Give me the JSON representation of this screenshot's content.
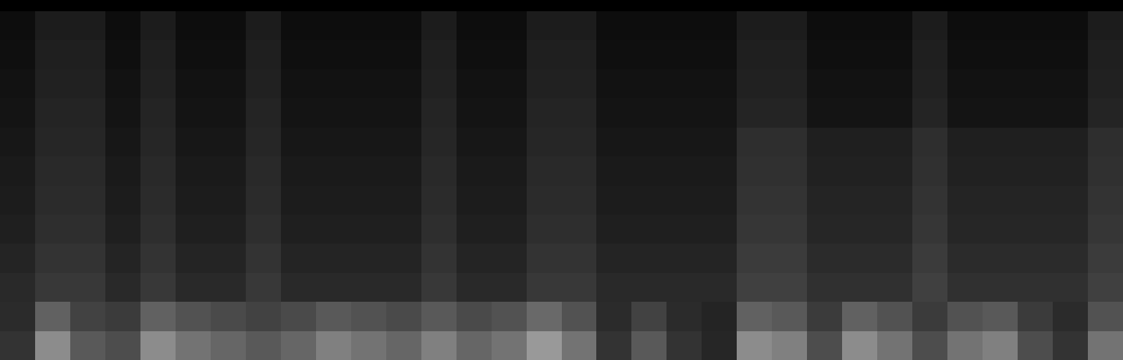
{
  "chart_data": {
    "type": "heatmap",
    "tick_labels": false,
    "zlim": [
      0,
      1
    ],
    "cells": [
      [
        0.05,
        0.11,
        0.11,
        0.05,
        0.11,
        0.05,
        0.05,
        0.11,
        0.05,
        0.05,
        0.05,
        0.05,
        0.11,
        0.05,
        0.05,
        0.11,
        0.11,
        0.05,
        0.05,
        0.05,
        0.05,
        0.11,
        0.11,
        0.05,
        0.05,
        0.05,
        0.11,
        0.05,
        0.05,
        0.05,
        0.05,
        0.11
      ],
      [
        0.06,
        0.12,
        0.12,
        0.06,
        0.12,
        0.06,
        0.06,
        0.12,
        0.06,
        0.06,
        0.06,
        0.06,
        0.12,
        0.06,
        0.06,
        0.12,
        0.12,
        0.06,
        0.06,
        0.06,
        0.06,
        0.12,
        0.12,
        0.06,
        0.06,
        0.06,
        0.12,
        0.06,
        0.06,
        0.06,
        0.06,
        0.12
      ],
      [
        0.07,
        0.13,
        0.13,
        0.07,
        0.13,
        0.07,
        0.07,
        0.13,
        0.07,
        0.07,
        0.07,
        0.07,
        0.13,
        0.07,
        0.07,
        0.13,
        0.13,
        0.07,
        0.07,
        0.07,
        0.07,
        0.13,
        0.13,
        0.07,
        0.07,
        0.07,
        0.13,
        0.07,
        0.07,
        0.07,
        0.07,
        0.13
      ],
      [
        0.08,
        0.14,
        0.14,
        0.08,
        0.14,
        0.08,
        0.08,
        0.14,
        0.08,
        0.08,
        0.08,
        0.08,
        0.14,
        0.08,
        0.08,
        0.14,
        0.14,
        0.08,
        0.08,
        0.08,
        0.08,
        0.14,
        0.14,
        0.08,
        0.08,
        0.08,
        0.14,
        0.08,
        0.08,
        0.08,
        0.08,
        0.14
      ],
      [
        0.09,
        0.15,
        0.15,
        0.09,
        0.15,
        0.09,
        0.09,
        0.15,
        0.09,
        0.09,
        0.09,
        0.09,
        0.15,
        0.09,
        0.09,
        0.15,
        0.15,
        0.09,
        0.09,
        0.09,
        0.09,
        0.18,
        0.18,
        0.12,
        0.12,
        0.12,
        0.18,
        0.12,
        0.12,
        0.12,
        0.12,
        0.18
      ],
      [
        0.1,
        0.16,
        0.16,
        0.1,
        0.16,
        0.1,
        0.1,
        0.16,
        0.1,
        0.1,
        0.1,
        0.1,
        0.16,
        0.1,
        0.1,
        0.16,
        0.16,
        0.1,
        0.1,
        0.1,
        0.1,
        0.19,
        0.19,
        0.13,
        0.13,
        0.13,
        0.19,
        0.13,
        0.13,
        0.13,
        0.13,
        0.19
      ],
      [
        0.11,
        0.17,
        0.17,
        0.11,
        0.17,
        0.11,
        0.11,
        0.17,
        0.11,
        0.11,
        0.11,
        0.11,
        0.17,
        0.11,
        0.11,
        0.17,
        0.17,
        0.11,
        0.11,
        0.11,
        0.11,
        0.2,
        0.2,
        0.14,
        0.14,
        0.14,
        0.2,
        0.14,
        0.14,
        0.14,
        0.14,
        0.2
      ],
      [
        0.12,
        0.18,
        0.18,
        0.12,
        0.18,
        0.12,
        0.12,
        0.18,
        0.12,
        0.12,
        0.12,
        0.12,
        0.18,
        0.12,
        0.12,
        0.18,
        0.18,
        0.12,
        0.12,
        0.12,
        0.12,
        0.21,
        0.21,
        0.15,
        0.15,
        0.15,
        0.21,
        0.15,
        0.15,
        0.15,
        0.15,
        0.21
      ],
      [
        0.14,
        0.2,
        0.2,
        0.14,
        0.2,
        0.14,
        0.14,
        0.2,
        0.14,
        0.14,
        0.14,
        0.14,
        0.2,
        0.14,
        0.14,
        0.2,
        0.2,
        0.14,
        0.14,
        0.14,
        0.14,
        0.23,
        0.23,
        0.17,
        0.17,
        0.17,
        0.23,
        0.17,
        0.17,
        0.17,
        0.17,
        0.23
      ],
      [
        0.16,
        0.22,
        0.22,
        0.16,
        0.22,
        0.16,
        0.16,
        0.22,
        0.16,
        0.16,
        0.16,
        0.16,
        0.22,
        0.16,
        0.16,
        0.22,
        0.22,
        0.16,
        0.16,
        0.16,
        0.16,
        0.25,
        0.25,
        0.19,
        0.19,
        0.19,
        0.25,
        0.19,
        0.19,
        0.19,
        0.19,
        0.25
      ],
      [
        0.17,
        0.38,
        0.26,
        0.23,
        0.38,
        0.32,
        0.29,
        0.26,
        0.29,
        0.35,
        0.32,
        0.29,
        0.35,
        0.29,
        0.32,
        0.41,
        0.32,
        0.17,
        0.26,
        0.17,
        0.14,
        0.38,
        0.35,
        0.23,
        0.38,
        0.32,
        0.23,
        0.32,
        0.35,
        0.23,
        0.17,
        0.32
      ],
      [
        0.2,
        0.55,
        0.35,
        0.3,
        0.55,
        0.45,
        0.4,
        0.35,
        0.4,
        0.5,
        0.45,
        0.4,
        0.5,
        0.4,
        0.45,
        0.6,
        0.45,
        0.2,
        0.35,
        0.2,
        0.15,
        0.55,
        0.5,
        0.3,
        0.55,
        0.45,
        0.3,
        0.45,
        0.5,
        0.3,
        0.2,
        0.45
      ]
    ]
  }
}
